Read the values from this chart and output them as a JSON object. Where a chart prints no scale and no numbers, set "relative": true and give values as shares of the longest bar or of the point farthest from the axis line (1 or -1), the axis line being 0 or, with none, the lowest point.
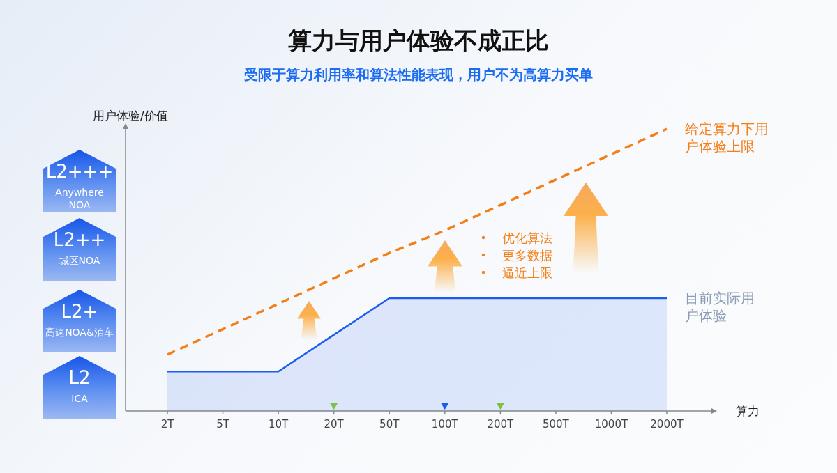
{
  "chart_data": {
    "type": "line",
    "title": "算力与用户体验不成正比",
    "subtitle": "受限于算力利用率和算法性能表现，用户不为高算力买单",
    "xlabel": "算力",
    "ylabel": "用户体验/价值",
    "relative": true,
    "categories": [
      "2T",
      "5T",
      "10T",
      "20T",
      "50T",
      "100T",
      "200T",
      "500T",
      "1000T",
      "2000T"
    ],
    "series": [
      {
        "name": "给定算力下用户体验上限",
        "line_style": "dashed",
        "color": "#f57f17",
        "values": [
          0.2,
          0.29,
          0.38,
          0.47,
          0.56,
          0.64,
          0.73,
          0.82,
          0.91,
          1
        ]
      },
      {
        "name": "目前实际用户体验",
        "type": "area",
        "color": "#1a5cf0",
        "values": [
          0.14,
          0.14,
          0.14,
          0.27,
          0.4,
          0.4,
          0.4,
          0.4,
          0.4,
          0.4
        ]
      },
      {
        "type": "scatter",
        "marker": "triangle",
        "colors": [
          "#7cc242",
          "#1a5cf0",
          "#7cc242"
        ],
        "x": [
          "20T",
          "100T",
          "200T"
        ],
        "values": [
          0.02,
          0.02,
          0.02
        ]
      }
    ],
    "annotations": [
      "L2+++",
      "Anywhere NOA",
      "L2++",
      "城区NOA",
      "L2+",
      "高速NOA&泊车",
      "L2",
      "ICA",
      "优化算法",
      "更多数据",
      "逼近上限"
    ],
    "grid": false
  }
}
